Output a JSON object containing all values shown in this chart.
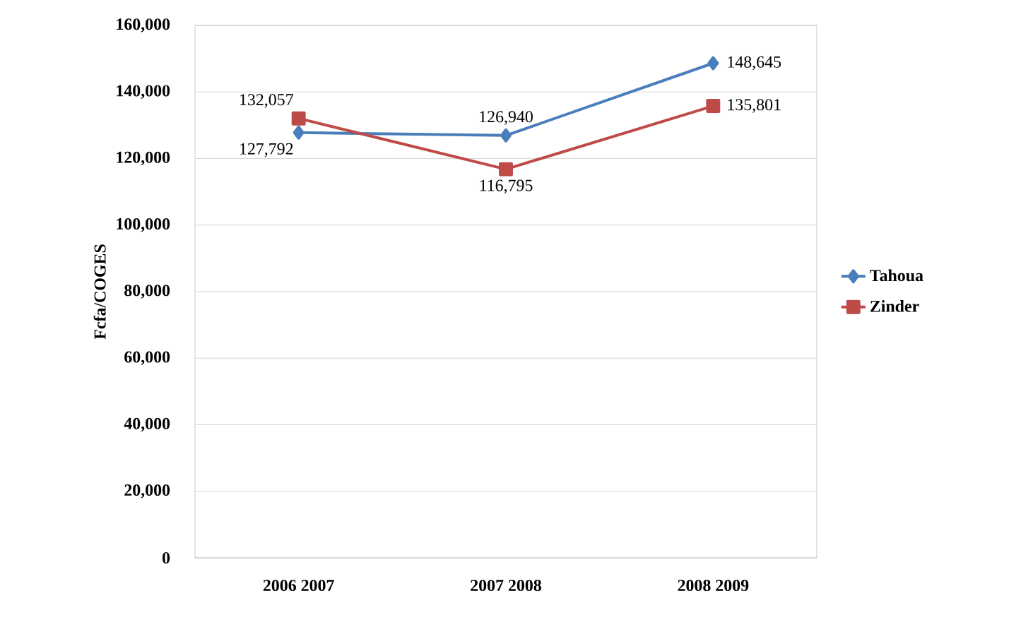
{
  "chart_data": {
    "type": "line",
    "ylabel": "Fcfa/COGES",
    "categories": [
      "2006 2007",
      "2007 2008",
      "2008 2009"
    ],
    "series": [
      {
        "name": "Tahoua",
        "color": "#4a7ebb",
        "marker": "diamond",
        "values": [
          127792,
          126940,
          148645
        ],
        "value_labels": [
          "127,792",
          "126,940",
          "148,645"
        ]
      },
      {
        "name": "Zinder",
        "color": "#be4b48",
        "marker": "square",
        "values": [
          132057,
          116795,
          135801
        ],
        "value_labels": [
          "132,057",
          "116,795",
          "135,801"
        ]
      }
    ],
    "ylim": [
      0,
      160000
    ],
    "yticks": [
      {
        "value": 0,
        "label": "0"
      },
      {
        "value": 20000,
        "label": "20,000"
      },
      {
        "value": 40000,
        "label": "40,000"
      },
      {
        "value": 60000,
        "label": "60,000"
      },
      {
        "value": 80000,
        "label": "80,000"
      },
      {
        "value": 100000,
        "label": "100,000"
      },
      {
        "value": 120000,
        "label": "120,000"
      },
      {
        "value": 140000,
        "label": "140,000"
      },
      {
        "value": 160000,
        "label": "160,000"
      }
    ],
    "grid": "y",
    "legend": "right"
  }
}
